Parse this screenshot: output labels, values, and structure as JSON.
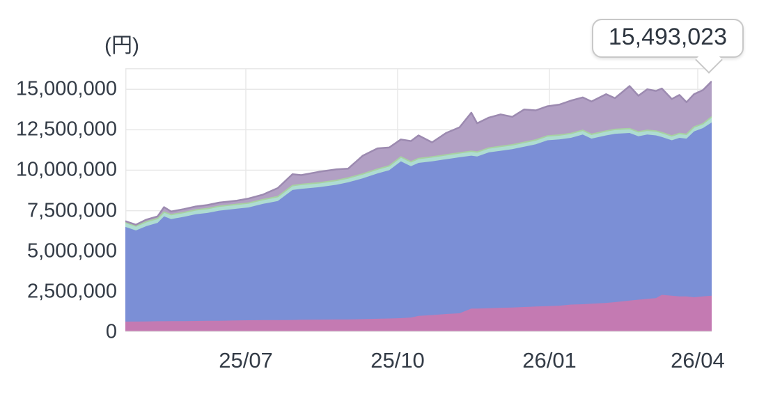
{
  "unit_label": "(円)",
  "tooltip": {
    "value": "15,493,023"
  },
  "colors": {
    "area_pink": "#c47ab2",
    "area_blue": "#7b8fd6",
    "area_teal": "#aedcd2",
    "area_purple": "#b2a0c4",
    "teal_edge": "#a7d1a2",
    "purple_edge": "#9c8ab0",
    "grid": "#e8e8e8",
    "axis_text": "#333b46",
    "tooltip_border": "#c8c8c8"
  },
  "chart_data": {
    "type": "area",
    "stacked": true,
    "title": "",
    "xlabel": "",
    "ylabel": "(円)",
    "grid": true,
    "legend": false,
    "ylim": [
      0,
      16300000
    ],
    "y_tick_values": [
      0,
      2500000,
      5000000,
      7500000,
      10000000,
      12500000,
      15000000
    ],
    "y_tick_labels": [
      "0",
      "2,500,000",
      "5,000,000",
      "7,500,000",
      "10,000,000",
      "12,500,000",
      "15,000,000"
    ],
    "x_ticks": [
      {
        "label": "25/07",
        "position": 0.2055
      },
      {
        "label": "25/10",
        "position": 0.4644
      },
      {
        "label": "26/01",
        "position": 0.7233
      },
      {
        "label": "26/04",
        "position": 0.9762
      }
    ],
    "highlighted_last_value": 15493023,
    "highlighted_last_value_label": "15,493,023",
    "x": [
      0,
      0.018,
      0.036,
      0.055,
      0.066,
      0.078,
      0.1,
      0.12,
      0.14,
      0.16,
      0.19,
      0.21,
      0.235,
      0.26,
      0.285,
      0.3,
      0.33,
      0.36,
      0.38,
      0.405,
      0.43,
      0.45,
      0.47,
      0.487,
      0.5,
      0.523,
      0.547,
      0.57,
      0.59,
      0.6,
      0.62,
      0.64,
      0.66,
      0.68,
      0.7,
      0.72,
      0.74,
      0.76,
      0.78,
      0.795,
      0.82,
      0.835,
      0.86,
      0.875,
      0.89,
      0.905,
      0.915,
      0.932,
      0.945,
      0.957,
      0.97,
      0.985,
      1
    ],
    "series": [
      {
        "name": "bottom-pink-layer",
        "color_key": "area_pink",
        "cumulative": [
          650000,
          650000,
          660000,
          670000,
          670000,
          680000,
          680000,
          690000,
          700000,
          700000,
          720000,
          730000,
          740000,
          740000,
          750000,
          760000,
          770000,
          780000,
          780000,
          800000,
          820000,
          840000,
          860000,
          900000,
          1000000,
          1050000,
          1120000,
          1160000,
          1450000,
          1450000,
          1470000,
          1500000,
          1520000,
          1550000,
          1580000,
          1600000,
          1630000,
          1700000,
          1720000,
          1750000,
          1800000,
          1850000,
          1950000,
          2000000,
          2050000,
          2100000,
          2300000,
          2250000,
          2200000,
          2200000,
          2150000,
          2200000,
          2250000
        ]
      },
      {
        "name": "main-blue-layer",
        "color_key": "area_blue",
        "cumulative": [
          6500000,
          6280000,
          6550000,
          6750000,
          7150000,
          6980000,
          7120000,
          7280000,
          7360000,
          7500000,
          7620000,
          7700000,
          7920000,
          8100000,
          8780000,
          8850000,
          8950000,
          9100000,
          9250000,
          9500000,
          9800000,
          10000000,
          10550000,
          10250000,
          10450000,
          10550000,
          10680000,
          10800000,
          10900000,
          10850000,
          11100000,
          11200000,
          11300000,
          11450000,
          11600000,
          11850000,
          11900000,
          12000000,
          12200000,
          11950000,
          12150000,
          12250000,
          12300000,
          12100000,
          12200000,
          12150000,
          12050000,
          11850000,
          12000000,
          11950000,
          12400000,
          12600000,
          12950000
        ]
      },
      {
        "name": "thin-teal-layer",
        "color_key": "area_teal",
        "cumulative": [
          6770000,
          6550000,
          6820000,
          7020000,
          7420000,
          7250000,
          7390000,
          7550000,
          7630000,
          7770000,
          7890000,
          7970000,
          8190000,
          8370000,
          9050000,
          9120000,
          9220000,
          9370000,
          9520000,
          9770000,
          10070000,
          10270000,
          10820000,
          10520000,
          10720000,
          10820000,
          10950000,
          11070000,
          11170000,
          11120000,
          11370000,
          11470000,
          11570000,
          11720000,
          11870000,
          12120000,
          12170000,
          12270000,
          12470000,
          12220000,
          12420000,
          12520000,
          12570000,
          12370000,
          12470000,
          12420000,
          12320000,
          12120000,
          12270000,
          12220000,
          12670000,
          12870000,
          13300000
        ]
      },
      {
        "name": "top-purple-layer",
        "color_key": "area_purple",
        "cumulative": [
          6850000,
          6630000,
          6950000,
          7150000,
          7720000,
          7450000,
          7600000,
          7760000,
          7850000,
          8000000,
          8120000,
          8250000,
          8500000,
          8900000,
          9750000,
          9700000,
          9900000,
          10050000,
          10100000,
          10900000,
          11350000,
          11400000,
          11900000,
          11800000,
          12150000,
          11720000,
          12300000,
          12650000,
          13550000,
          12900000,
          13250000,
          13450000,
          13300000,
          13750000,
          13700000,
          13950000,
          14050000,
          14300000,
          14500000,
          14250000,
          14700000,
          14450000,
          15200000,
          14600000,
          15000000,
          14900000,
          15050000,
          14400000,
          14650000,
          14200000,
          14700000,
          14950000,
          15493023
        ]
      }
    ]
  }
}
